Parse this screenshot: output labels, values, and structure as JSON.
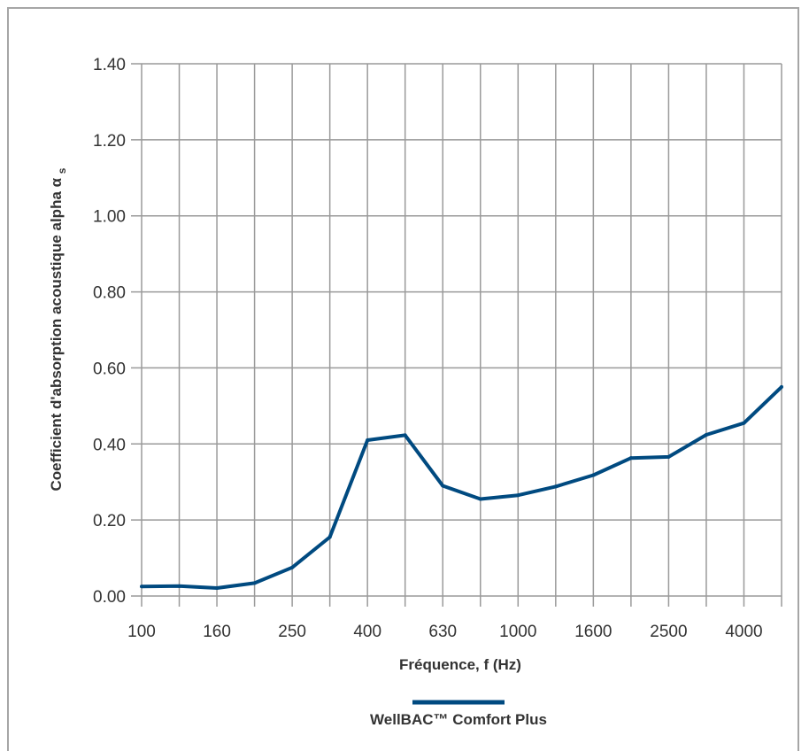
{
  "chart_data": {
    "type": "line",
    "x": [
      "100",
      "125",
      "160",
      "200",
      "250",
      "315",
      "400",
      "500",
      "630",
      "800",
      "1000",
      "1250",
      "1600",
      "2000",
      "2500",
      "3150",
      "4000",
      "5000"
    ],
    "x_tick_labels": [
      "100",
      "160",
      "250",
      "400",
      "630",
      "1000",
      "1600",
      "2500",
      "4000"
    ],
    "y_tick_labels": [
      "0.00",
      "0.20",
      "0.40",
      "0.60",
      "0.80",
      "1.00",
      "1.20",
      "1.40"
    ],
    "ylim": [
      0,
      1.4
    ],
    "xlabel": "Fréquence, f (Hz)",
    "ylabel": "Coefficient d'absorption acoustique alpha α",
    "ylabel_subscript": "s",
    "grid": true,
    "legend_position": "bottom-center",
    "series": [
      {
        "name": "WellBAC™ Comfort Plus",
        "color": "#004a80",
        "values": [
          0.025,
          0.026,
          0.021,
          0.034,
          0.075,
          0.155,
          0.41,
          0.423,
          0.29,
          0.255,
          0.265,
          0.288,
          0.318,
          0.363,
          0.366,
          0.424,
          0.455,
          0.55
        ]
      }
    ],
    "grid_color": "#9a9a9a"
  }
}
